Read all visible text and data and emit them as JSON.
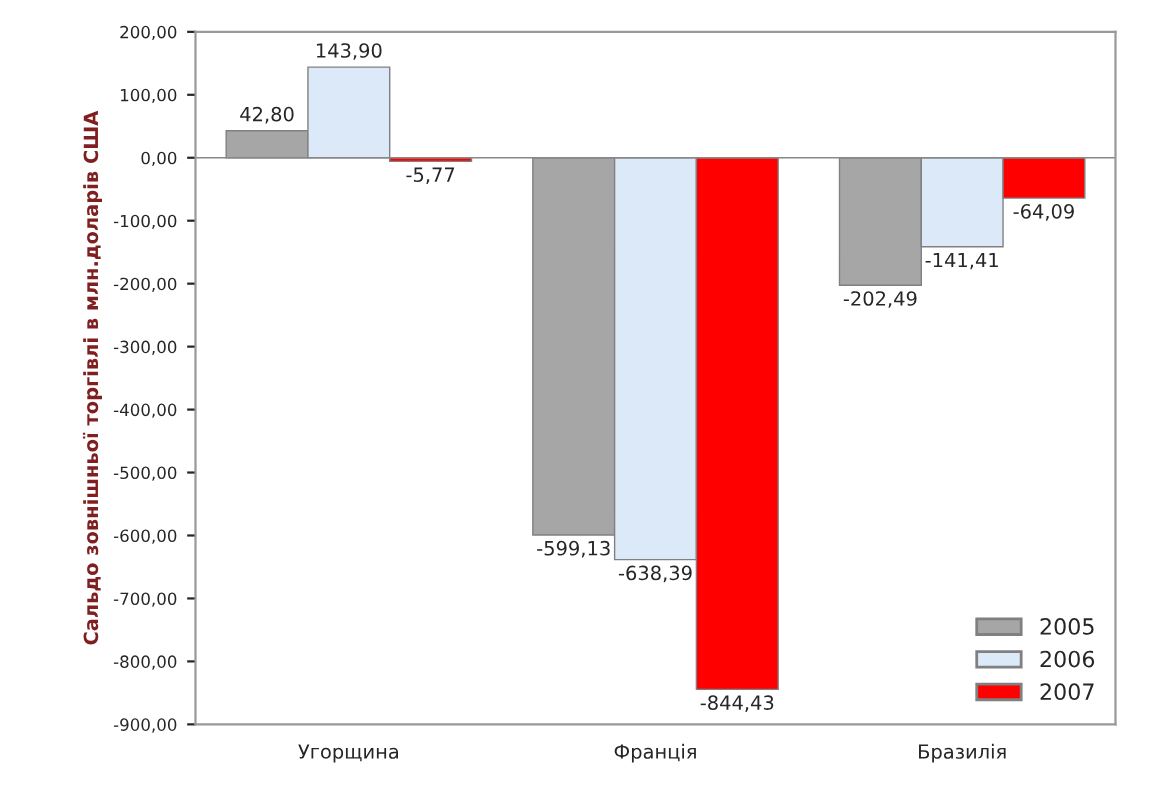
{
  "chart_data": {
    "type": "bar",
    "ylabel": "Сальдо зовнішньої торгівлі в млн.доларів США",
    "categories": [
      "Угорщина",
      "Франція",
      "Бразилія"
    ],
    "series": [
      {
        "name": "2005",
        "color": "#a6a6a6",
        "values": [
          42.8,
          -599.13,
          -202.49
        ],
        "value_labels": [
          "42,80",
          "-599,13",
          "-202,49"
        ]
      },
      {
        "name": "2006",
        "color": "#dce9f8",
        "values": [
          143.9,
          -638.39,
          -141.41
        ],
        "value_labels": [
          "143,90",
          "-638,39",
          "-141,41"
        ]
      },
      {
        "name": "2007",
        "color": "#ff0000",
        "values": [
          -5.77,
          -844.43,
          -64.09
        ],
        "value_labels": [
          "-5,77",
          "-844,43",
          "-64,09"
        ]
      }
    ],
    "ylim": [
      -900,
      200
    ],
    "yticks": [
      {
        "value": 200,
        "label": "200,00"
      },
      {
        "value": 100,
        "label": "100,00"
      },
      {
        "value": 0,
        "label": "0,00"
      },
      {
        "value": -100,
        "label": "-100,00"
      },
      {
        "value": -200,
        "label": "-200,00"
      },
      {
        "value": -300,
        "label": "-300,00"
      },
      {
        "value": -400,
        "label": "-400,00"
      },
      {
        "value": -500,
        "label": "-500,00"
      },
      {
        "value": -600,
        "label": "-600,00"
      },
      {
        "value": -700,
        "label": "-700,00"
      },
      {
        "value": -800,
        "label": "-800,00"
      },
      {
        "value": -900,
        "label": "-900,00"
      }
    ],
    "legend": "bottom right"
  }
}
